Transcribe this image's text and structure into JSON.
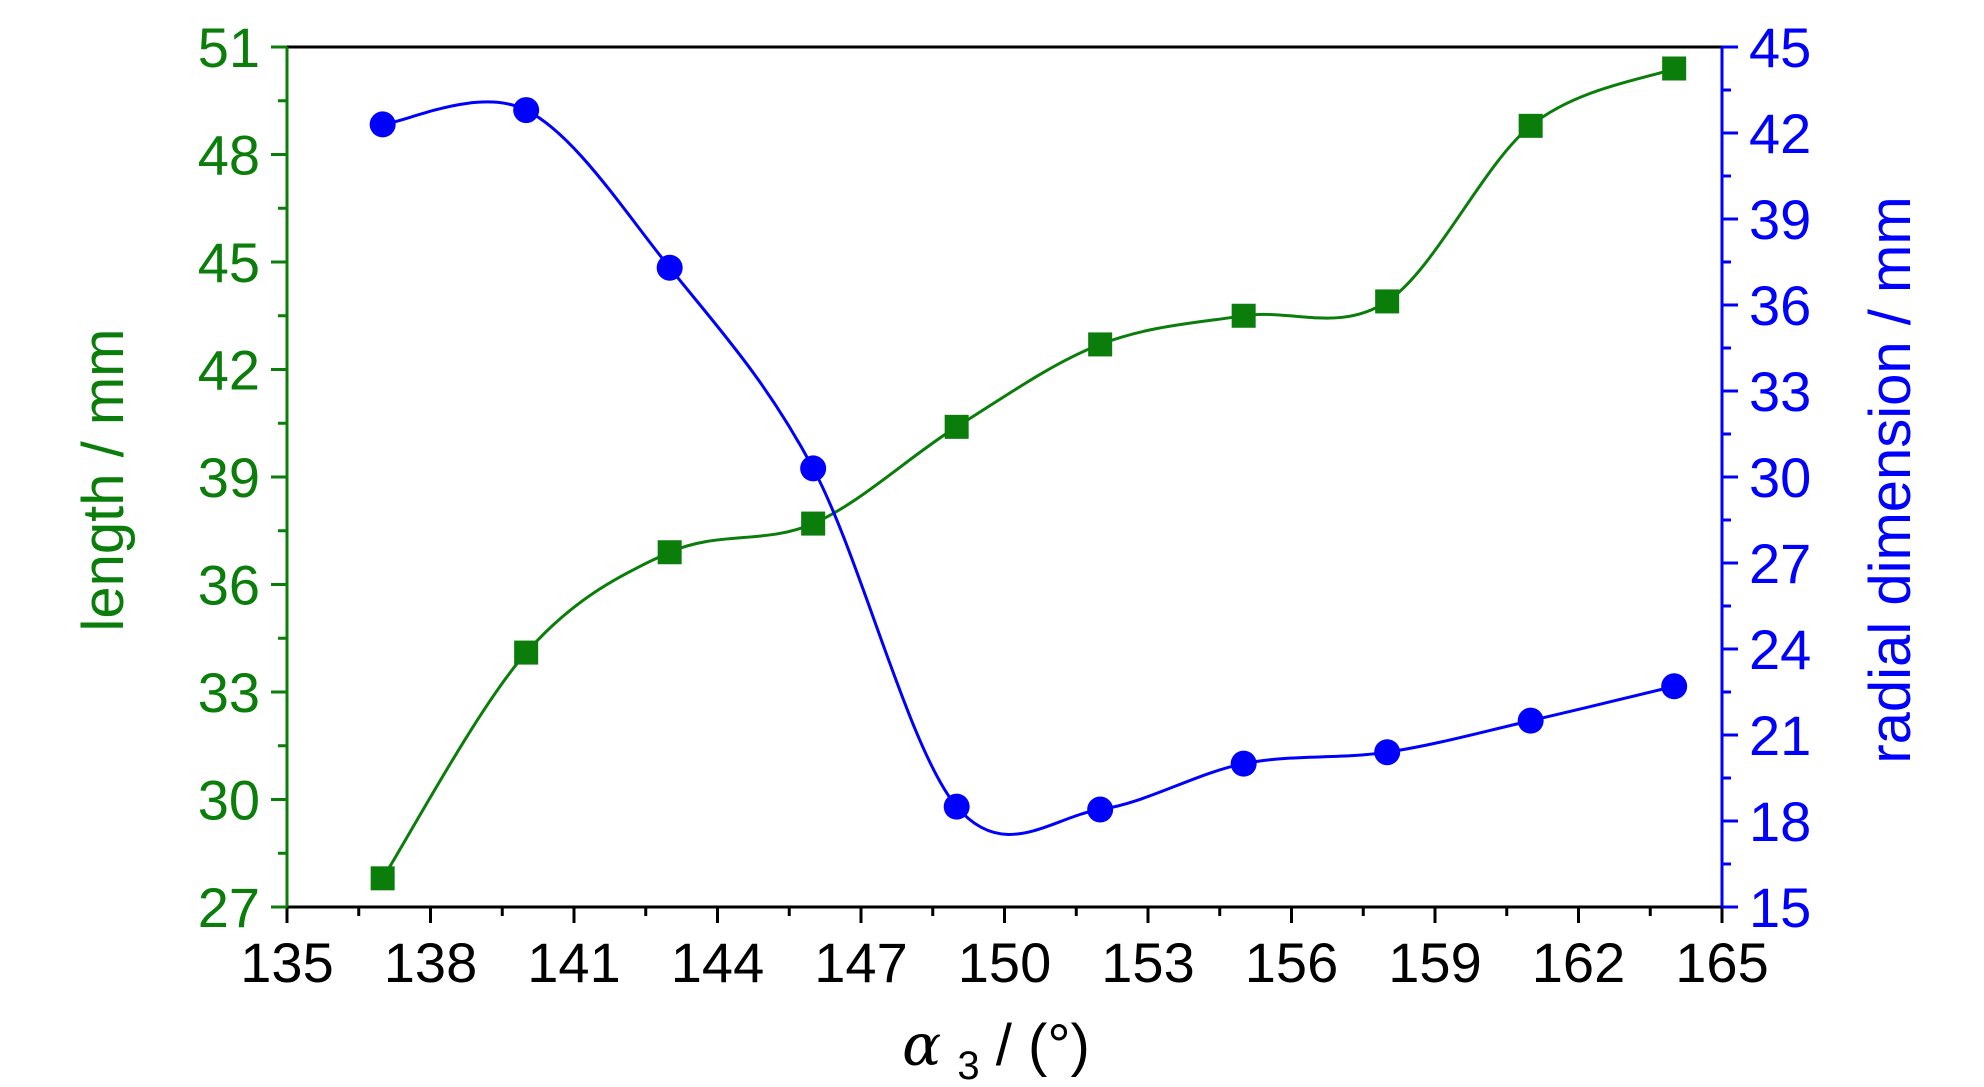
{
  "chart_data": {
    "type": "line",
    "title": "",
    "xlabel": {
      "symbol": "α",
      "subscript": "3",
      "unit": " / (°)"
    },
    "ylabel_left": "length / mm",
    "ylabel_right": "radial dimension / mm",
    "xlim": [
      135,
      165
    ],
    "xticks": [
      135,
      138,
      141,
      144,
      147,
      150,
      153,
      156,
      159,
      162,
      165
    ],
    "ylim_left": [
      27,
      51
    ],
    "yticks_left": [
      27,
      30,
      33,
      36,
      39,
      42,
      45,
      48,
      51
    ],
    "ylim_right": [
      15,
      45
    ],
    "yticks_right": [
      15,
      18,
      21,
      24,
      27,
      30,
      33,
      36,
      39,
      42,
      45
    ],
    "grid": false,
    "legend": "none",
    "colors": {
      "left": "#0a7d0a",
      "right": "#0000ff",
      "frame": "#000000"
    },
    "series": [
      {
        "axis": "left",
        "marker": "square",
        "x": [
          137,
          140,
          143,
          146,
          149,
          152,
          155,
          158,
          161,
          164
        ],
        "y": [
          27.8,
          34.1,
          36.9,
          37.7,
          40.4,
          42.7,
          43.5,
          43.9,
          48.8,
          50.4
        ]
      },
      {
        "axis": "right",
        "marker": "circle",
        "x": [
          137,
          140,
          143,
          146,
          149,
          152,
          155,
          158,
          161,
          164
        ],
        "y": [
          42.3,
          42.8,
          37.3,
          30.3,
          18.5,
          18.4,
          20.0,
          20.4,
          21.5,
          22.7
        ]
      }
    ]
  }
}
